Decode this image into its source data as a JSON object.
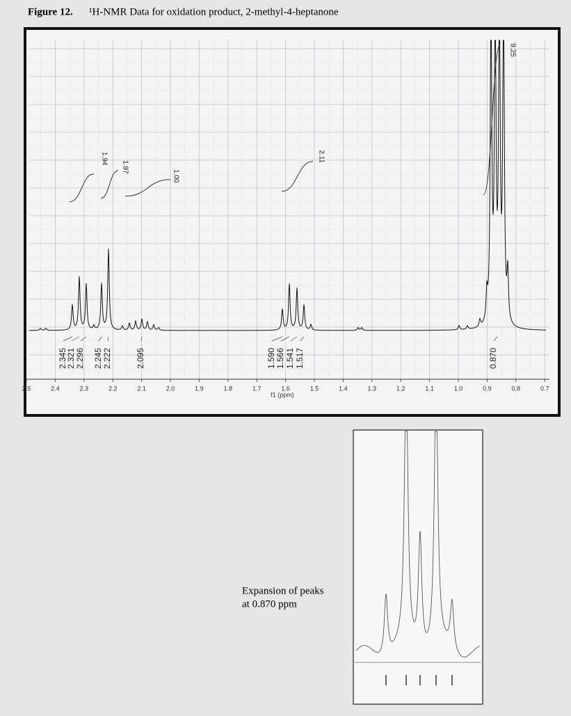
{
  "figure": {
    "label": "Figure 12.",
    "caption": "¹H-NMR Data for oxidation product, 2-methyl-4-heptanone"
  },
  "spectrum": {
    "x_ticks": [
      "2.5",
      "2.4",
      "2.3",
      "2.2",
      "2.1",
      "2.0",
      "1.9",
      "1.8",
      "1.7",
      "1.6",
      "1.5",
      "1.4",
      "1.3",
      "1.2",
      "1.1",
      "1.0",
      "0.9",
      "0.8",
      "0.7"
    ],
    "x_axis_label": "f1 (ppm)",
    "peak_labels": [
      "2.345",
      "2.321",
      "2.296",
      "2.245",
      "2.222",
      "2.095",
      "1.590",
      "1.566",
      "1.541",
      "1.517",
      "0.870"
    ],
    "integrals": [
      "1.94",
      "1.97",
      "1.00",
      "2.11",
      "9.25"
    ]
  },
  "inset": {
    "caption": [
      "Expansion of peaks",
      "at 0.870 ppm"
    ]
  }
}
